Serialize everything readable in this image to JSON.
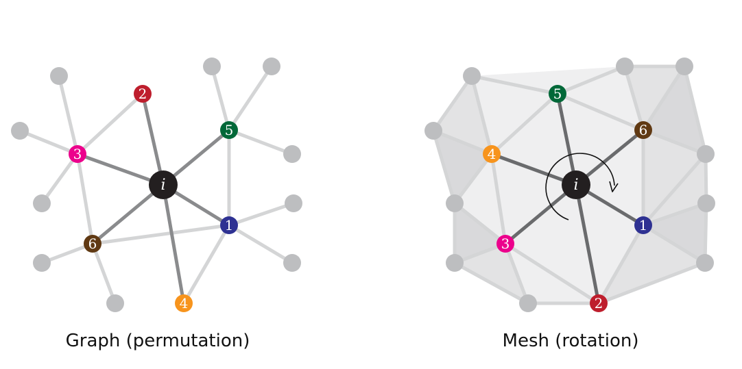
{
  "colors": {
    "background": "#ffffff",
    "gray_node": "#bdbec0",
    "light_edge": "#d4d5d6",
    "dark_edge": "#8a8b8d",
    "mesh_dark_edge": "#6a6b6d",
    "center_node": "#231f20",
    "face_light": "#efeff0",
    "face_mid": "#e3e3e4",
    "face_dark": "#d9d9db"
  },
  "left_panel": {
    "caption": "Graph (permutation)",
    "center": {
      "label": "i",
      "color": "#231f20"
    },
    "neighbors": [
      {
        "label": "1",
        "color": "#2e3192"
      },
      {
        "label": "2",
        "color": "#be1e2d"
      },
      {
        "label": "3",
        "color": "#ec008c"
      },
      {
        "label": "4",
        "color": "#f7941d"
      },
      {
        "label": "5",
        "color": "#006838"
      },
      {
        "label": "6",
        "color": "#603913"
      }
    ]
  },
  "right_panel": {
    "caption": "Mesh (rotation)",
    "center": {
      "label": "i",
      "color": "#231f20"
    },
    "neighbors": [
      {
        "label": "1",
        "color": "#2e3192"
      },
      {
        "label": "2",
        "color": "#be1e2d"
      },
      {
        "label": "3",
        "color": "#ec008c"
      },
      {
        "label": "4",
        "color": "#f7941d"
      },
      {
        "label": "5",
        "color": "#006838"
      },
      {
        "label": "6",
        "color": "#603913"
      }
    ],
    "rotation_icon": "counter-clockwise-arrow-icon"
  }
}
